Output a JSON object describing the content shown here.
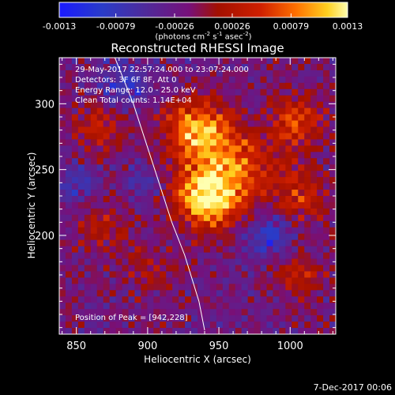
{
  "chart_data": {
    "type": "heatmap",
    "title": "Reconstructed RHESSI Image",
    "xlabel": "Heliocentric X (arcsec)",
    "ylabel": "Heliocentric Y (arcsec)",
    "xlim": [
      838,
      1032
    ],
    "ylim": [
      125,
      335
    ],
    "xticks": [
      850,
      900,
      950,
      1000
    ],
    "yticks": [
      200,
      250,
      300
    ],
    "colorbar": {
      "label_parts": [
        "(photons cm",
        "-2",
        " s",
        "-1",
        " asec",
        "-2",
        ")"
      ],
      "min": -0.0013,
      "max": 0.0013,
      "tick_labels": [
        "-0.0013",
        "-0.00079",
        "-0.00026",
        "0.00026",
        "0.00079",
        "0.0013"
      ],
      "tick_values": [
        -0.0013,
        -0.00079,
        -0.00026,
        0.00026,
        0.00079,
        0.0013
      ],
      "colormap": "rhessi-blue-red-yellow"
    },
    "annotations": [
      "29-May-2017 22:57:24.000 to 23:07:24.000",
      "Detectors: 3F 6F 8F, Att 0",
      "Energy Range: 12.0 - 25.0 keV",
      "Clean    Total counts: 1.14E+04"
    ],
    "peak": {
      "label": "Position of Peak = [942,228]",
      "x": 942,
      "y": 228
    },
    "limb": [
      [
        877,
        335
      ],
      [
        890,
        300
      ],
      [
        905,
        250
      ],
      [
        917,
        210
      ],
      [
        926,
        185
      ],
      [
        936,
        150
      ],
      [
        940,
        128
      ]
    ],
    "grid": false,
    "legend": "none"
  },
  "footer_date": "7-Dec-2017 00:06"
}
